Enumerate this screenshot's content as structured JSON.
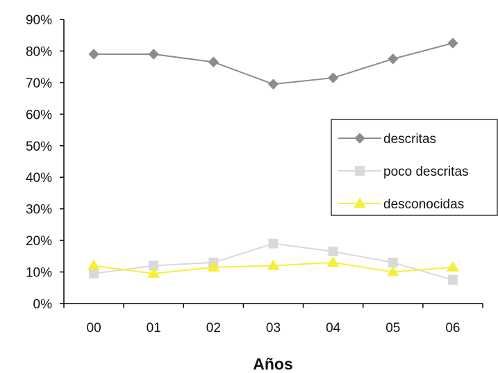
{
  "chart_data": {
    "type": "line",
    "title": "",
    "xlabel": "Años",
    "ylabel": "",
    "categories": [
      "00",
      "01",
      "02",
      "03",
      "04",
      "05",
      "06"
    ],
    "ylim": [
      0,
      90
    ],
    "yticks": [
      0,
      10,
      20,
      30,
      40,
      50,
      60,
      70,
      80,
      90
    ],
    "ytick_suffix": "%",
    "grid": false,
    "legend_position": "right",
    "series": [
      {
        "name": "descritas",
        "values": [
          79,
          79,
          76.5,
          69.5,
          71.5,
          77.5,
          82.5
        ],
        "color": "#8c8c8c",
        "marker": "diamond"
      },
      {
        "name": "poco descritas",
        "values": [
          9.5,
          12,
          13,
          19,
          16.5,
          13,
          7.5
        ],
        "color": "#d9d9d9",
        "marker": "square"
      },
      {
        "name": "desconocidas",
        "values": [
          12,
          9.5,
          11.5,
          12,
          13,
          10,
          11.5
        ],
        "color": "#f5ef3a",
        "marker": "triangle"
      }
    ]
  }
}
